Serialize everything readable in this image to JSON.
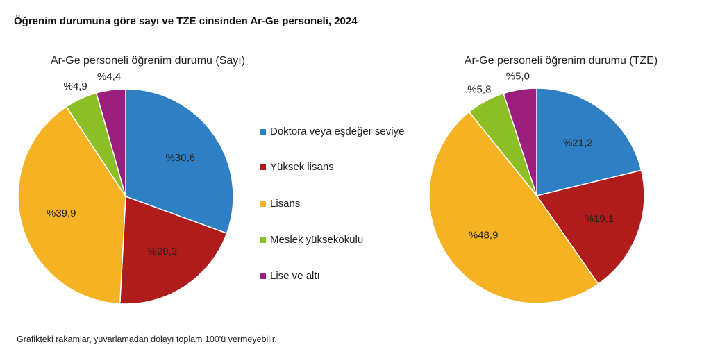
{
  "title": "Öğrenim durumuna göre sayı ve TZE cinsinden Ar-Ge personeli, 2024",
  "note": "Grafikteki rakamlar, yuvarlamadan dolayı toplam 100'ü vermeyebilir.",
  "legend": {
    "categories": [
      "Doktora veya eşdeğer seviye",
      "Yüksek lisans",
      "Lisans",
      "Meslek yüksekokulu",
      "Lise ve altı"
    ],
    "colors": [
      "#2e7fc4",
      "#b01c1c",
      "#f5b324",
      "#8cbf26",
      "#9c1f7e"
    ]
  },
  "chart_data": [
    {
      "type": "pie",
      "title": "Ar-Ge personeli öğrenim durumu (Sayı)",
      "values": [
        30.6,
        20.3,
        39.9,
        4.9,
        4.4
      ],
      "value_labels": [
        "%30,6",
        "%20,3",
        "%39,9",
        "%4,9",
        "%4,4"
      ]
    },
    {
      "type": "pie",
      "title": "Ar-Ge personeli öğrenim durumu (TZE)",
      "values": [
        21.2,
        19.1,
        48.9,
        5.8,
        5.0
      ],
      "value_labels": [
        "%21,2",
        "%19,1",
        "%48,9",
        "%5,8",
        "%5,0"
      ]
    }
  ]
}
